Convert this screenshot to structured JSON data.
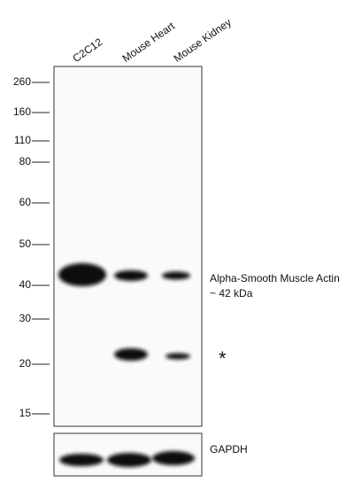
{
  "lanes": [
    "C2C12",
    "Mouse Heart",
    "Mouse Kidney"
  ],
  "markers": [
    260,
    160,
    110,
    80,
    60,
    50,
    40,
    30,
    20,
    15
  ],
  "annotations": {
    "target": "Alpha-Smooth Muscle Actin",
    "size": "~ 42 kDa",
    "star": "*",
    "control": "GAPDH"
  }
}
